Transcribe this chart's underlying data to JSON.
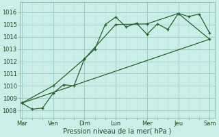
{
  "bg_color": "#cceee8",
  "grid_color_major": "#9bccc6",
  "grid_color_minor": "#b8ddd9",
  "line_color": "#2a5e2a",
  "xlabel": "Pression niveau de la mer( hPa )",
  "xlabels": [
    "Mar",
    "Ven",
    "Dim",
    "Lun",
    "Mer",
    "Jeu",
    "Sam"
  ],
  "xtick_pos": [
    0,
    3,
    6,
    9,
    12,
    15,
    18
  ],
  "ylim": [
    1007.4,
    1016.8
  ],
  "yticks": [
    1008,
    1009,
    1010,
    1011,
    1012,
    1013,
    1014,
    1015,
    1016
  ],
  "xlim": [
    -0.2,
    18.5
  ],
  "series1_x": [
    0,
    1,
    2,
    3,
    4,
    5,
    6,
    7,
    8,
    9,
    10,
    11,
    12,
    13,
    14,
    15,
    16,
    17,
    18
  ],
  "series1_y": [
    1008.6,
    1008.1,
    1008.2,
    1009.4,
    1010.1,
    1010.0,
    1012.2,
    1013.0,
    1015.0,
    1015.6,
    1014.8,
    1015.1,
    1014.2,
    1015.05,
    1014.6,
    1015.9,
    1015.65,
    1015.85,
    1014.3
  ],
  "series2_x": [
    0,
    3,
    6,
    9,
    12,
    15,
    18
  ],
  "series2_y": [
    1008.6,
    1010.0,
    1012.2,
    1015.0,
    1015.05,
    1015.9,
    1013.8
  ],
  "series3_x": [
    0,
    18
  ],
  "series3_y": [
    1008.6,
    1013.8
  ],
  "title_fontsize": 6.5,
  "tick_fontsize": 6.0,
  "xlabel_fontsize": 7.0
}
